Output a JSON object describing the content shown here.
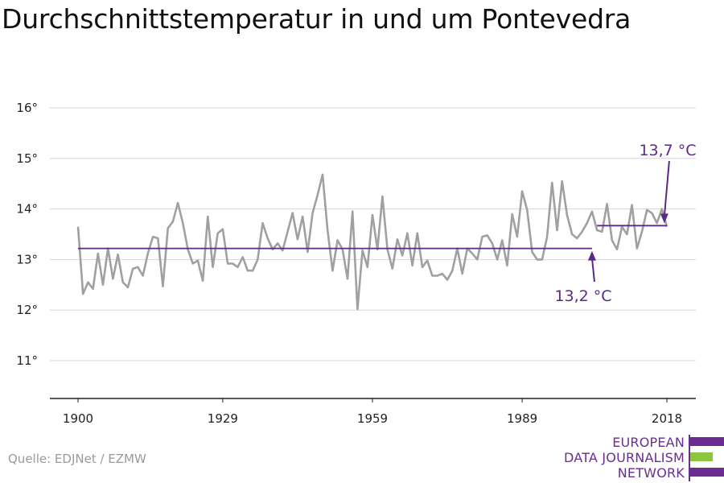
{
  "chart_data": {
    "type": "line",
    "title": "Durchschnittstemperatur in und um Pontevedra",
    "xlabel": "",
    "ylabel": "",
    "xlim": [
      1900,
      2018
    ],
    "ylim": [
      10.2,
      16.3
    ],
    "x_ticks": [
      1900,
      1929,
      1959,
      1989,
      2018
    ],
    "y_ticks": [
      11,
      12,
      13,
      14,
      15,
      16
    ],
    "y_tick_labels": [
      "11°",
      "12°",
      "13°",
      "14°",
      "15°",
      "16°"
    ],
    "grid": "horizontal",
    "series": [
      {
        "color": "#a0a0a0",
        "x": [
          1900,
          1901,
          1902,
          1903,
          1904,
          1905,
          1906,
          1907,
          1908,
          1909,
          1910,
          1911,
          1912,
          1913,
          1914,
          1915,
          1916,
          1917,
          1918,
          1919,
          1920,
          1921,
          1922,
          1923,
          1924,
          1925,
          1926,
          1927,
          1928,
          1929,
          1930,
          1931,
          1932,
          1933,
          1934,
          1935,
          1936,
          1937,
          1938,
          1939,
          1940,
          1941,
          1942,
          1943,
          1944,
          1945,
          1946,
          1947,
          1948,
          1949,
          1950,
          1951,
          1952,
          1953,
          1954,
          1955,
          1956,
          1957,
          1958,
          1959,
          1960,
          1961,
          1962,
          1963,
          1964,
          1965,
          1966,
          1967,
          1968,
          1969,
          1970,
          1971,
          1972,
          1973,
          1974,
          1975,
          1976,
          1977,
          1978,
          1979,
          1980,
          1981,
          1982,
          1983,
          1984,
          1985,
          1986,
          1987,
          1988,
          1989,
          1990,
          1991,
          1992,
          1993,
          1994,
          1995,
          1996,
          1997,
          1998,
          1999,
          2000,
          2001,
          2002,
          2003,
          2004,
          2005,
          2006,
          2007,
          2008,
          2009,
          2010,
          2011,
          2012,
          2013,
          2014,
          2015,
          2016,
          2017,
          2018
        ],
        "values": [
          13.65,
          12.32,
          12.55,
          12.42,
          13.12,
          12.5,
          13.22,
          12.62,
          13.1,
          12.55,
          12.45,
          12.82,
          12.85,
          12.68,
          13.12,
          13.45,
          13.42,
          12.47,
          13.62,
          13.75,
          14.12,
          13.72,
          13.2,
          12.92,
          12.98,
          12.58,
          13.85,
          12.85,
          13.52,
          13.6,
          12.92,
          12.92,
          12.85,
          13.05,
          12.78,
          12.78,
          13.0,
          13.72,
          13.42,
          13.2,
          13.32,
          13.18,
          13.55,
          13.92,
          13.4,
          13.85,
          13.15,
          13.92,
          14.28,
          14.68,
          13.58,
          12.78,
          13.38,
          13.2,
          12.62,
          13.95,
          12.02,
          13.18,
          12.85,
          13.88,
          13.2,
          14.25,
          13.2,
          12.82,
          13.4,
          13.08,
          13.52,
          12.88,
          13.52,
          12.85,
          12.98,
          12.68,
          12.68,
          12.72,
          12.6,
          12.78,
          13.22,
          12.72,
          13.22,
          13.12,
          13.0,
          13.45,
          13.48,
          13.32,
          13.0,
          13.38,
          12.88,
          13.9,
          13.45,
          14.35,
          13.98,
          13.15,
          13.0,
          13.0,
          13.45,
          14.52,
          13.58,
          14.55,
          13.88,
          13.5,
          13.42,
          13.55,
          13.72,
          13.95,
          13.58,
          13.55,
          14.1,
          13.38,
          13.2,
          13.65,
          13.5,
          14.08,
          13.22,
          13.55,
          13.98,
          13.92,
          13.72,
          14.0,
          13.65
        ]
      },
      {
        "color": "#5b2a86",
        "x": [
          1900,
          2003
        ],
        "values": [
          13.22,
          13.22
        ]
      },
      {
        "color": "#5b2a86",
        "x": [
          2004,
          2018
        ],
        "values": [
          13.67,
          13.67
        ]
      }
    ],
    "annotations": [
      {
        "text": "13,2 °C",
        "color": "#5b2a86"
      },
      {
        "text": "13,7 °C",
        "color": "#5b2a86"
      }
    ]
  },
  "source": "Quelle: EDJNet / EZMW",
  "logo": {
    "lines": [
      "EUROPEAN",
      "DATA JOURNALISM",
      "NETWORK"
    ],
    "colors": [
      "#6b2d91",
      "#8cc63f",
      "#6b2d91"
    ]
  }
}
